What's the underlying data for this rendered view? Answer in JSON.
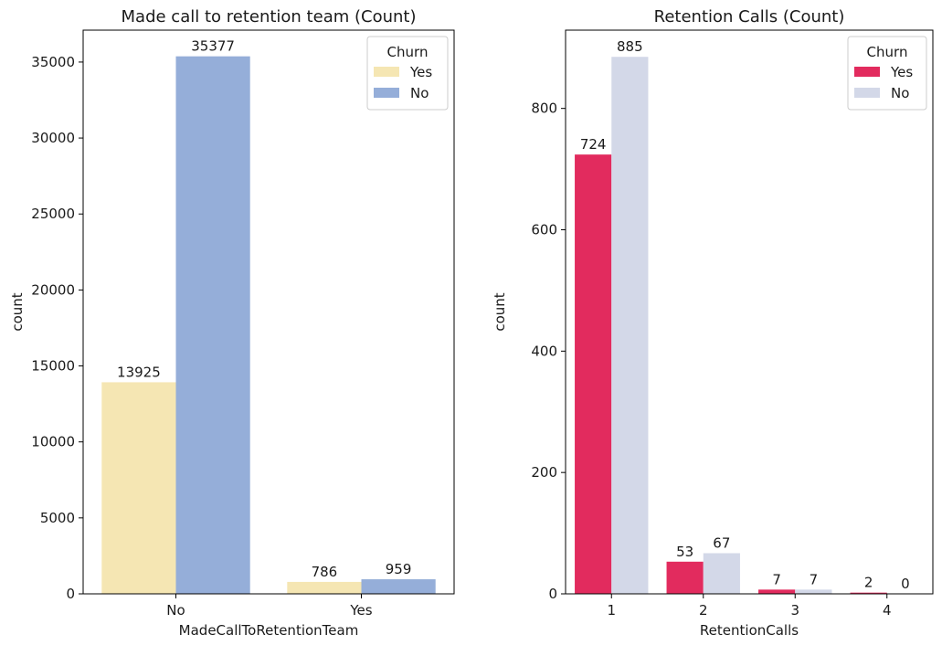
{
  "chart_data": [
    {
      "type": "bar",
      "title": "Made call to retention team (Count)",
      "xlabel": "MadeCallToRetentionTeam",
      "ylabel": "count",
      "categories": [
        "No",
        "Yes"
      ],
      "ylim": [
        0,
        37100
      ],
      "yticks": [
        0,
        5000,
        10000,
        15000,
        20000,
        25000,
        30000,
        35000
      ],
      "legend": {
        "title": "Churn",
        "placement": "top-right"
      },
      "grid": false,
      "series": [
        {
          "name": "Yes",
          "color": "#f5e6b3",
          "values": [
            13925,
            786
          ]
        },
        {
          "name": "No",
          "color": "#95aed9",
          "values": [
            35377,
            959
          ]
        }
      ]
    },
    {
      "type": "bar",
      "title": "Retention Calls (Count)",
      "xlabel": "RetentionCalls",
      "ylabel": "count",
      "categories": [
        "1",
        "2",
        "3",
        "4"
      ],
      "ylim": [
        0,
        929
      ],
      "yticks": [
        0,
        200,
        400,
        600,
        800
      ],
      "legend": {
        "title": "Churn",
        "placement": "top-right"
      },
      "grid": false,
      "series": [
        {
          "name": "Yes",
          "color": "#e22b5e",
          "values": [
            724,
            53,
            7,
            2
          ]
        },
        {
          "name": "No",
          "color": "#d3d8e8",
          "values": [
            885,
            67,
            7,
            0
          ]
        }
      ]
    }
  ]
}
